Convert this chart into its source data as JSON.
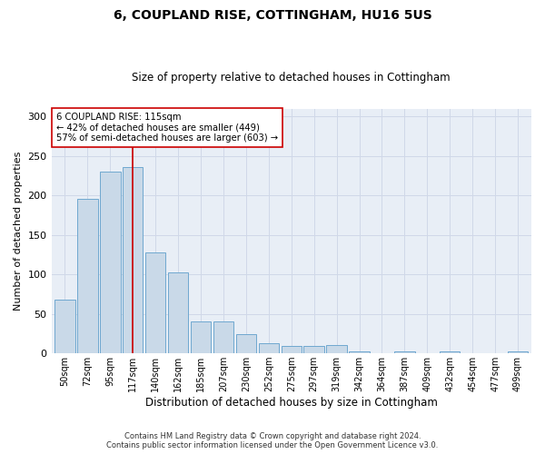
{
  "title": "6, COUPLAND RISE, COTTINGHAM, HU16 5US",
  "subtitle": "Size of property relative to detached houses in Cottingham",
  "xlabel": "Distribution of detached houses by size in Cottingham",
  "ylabel": "Number of detached properties",
  "bar_labels": [
    "50sqm",
    "72sqm",
    "95sqm",
    "117sqm",
    "140sqm",
    "162sqm",
    "185sqm",
    "207sqm",
    "230sqm",
    "252sqm",
    "275sqm",
    "297sqm",
    "319sqm",
    "342sqm",
    "364sqm",
    "387sqm",
    "409sqm",
    "432sqm",
    "454sqm",
    "477sqm",
    "499sqm"
  ],
  "bar_values": [
    68,
    196,
    230,
    236,
    128,
    103,
    41,
    41,
    24,
    13,
    9,
    9,
    10,
    3,
    0,
    3,
    0,
    3,
    0,
    0,
    3
  ],
  "bar_color": "#c9d9e8",
  "bar_edge_color": "#6fa8d0",
  "vline_x": 3.0,
  "vline_color": "#cc0000",
  "annotation_text": "6 COUPLAND RISE: 115sqm\n← 42% of detached houses are smaller (449)\n57% of semi-detached houses are larger (603) →",
  "annotation_box_color": "#ffffff",
  "annotation_box_edge_color": "#cc0000",
  "ylim": [
    0,
    310
  ],
  "yticks": [
    0,
    50,
    100,
    150,
    200,
    250,
    300
  ],
  "grid_color": "#d0d8e8",
  "background_color": "#e8eef6",
  "footer_line1": "Contains HM Land Registry data © Crown copyright and database right 2024.",
  "footer_line2": "Contains public sector information licensed under the Open Government Licence v3.0."
}
